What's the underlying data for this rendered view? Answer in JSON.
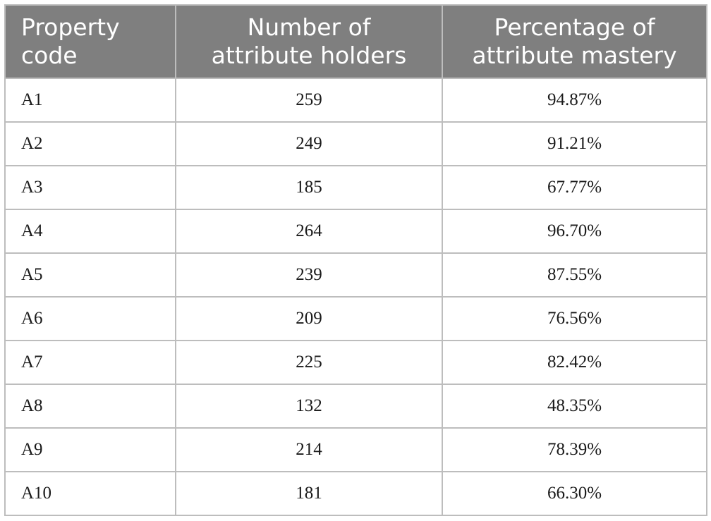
{
  "table": {
    "headers": {
      "code": [
        "Property",
        "code"
      ],
      "holders": [
        "Number of",
        "attribute holders"
      ],
      "percentage": [
        "Percentage of",
        "attribute mastery"
      ]
    },
    "rows": [
      {
        "code": "A1",
        "holders": "259",
        "percentage": "94.87%"
      },
      {
        "code": "A2",
        "holders": "249",
        "percentage": "91.21%"
      },
      {
        "code": "A3",
        "holders": "185",
        "percentage": "67.77%"
      },
      {
        "code": "A4",
        "holders": "264",
        "percentage": "96.70%"
      },
      {
        "code": "A5",
        "holders": "239",
        "percentage": "87.55%"
      },
      {
        "code": "A6",
        "holders": "209",
        "percentage": "76.56%"
      },
      {
        "code": "A7",
        "holders": "225",
        "percentage": "82.42%"
      },
      {
        "code": "A8",
        "holders": "132",
        "percentage": "48.35%"
      },
      {
        "code": "A9",
        "holders": "214",
        "percentage": "78.39%"
      },
      {
        "code": "A10",
        "holders": "181",
        "percentage": "66.30%"
      }
    ]
  },
  "colors": {
    "header_bg": "#7f7f7f",
    "header_text": "#ffffff",
    "grid": "#bdbdbd",
    "body_text": "#1a1a1a"
  }
}
